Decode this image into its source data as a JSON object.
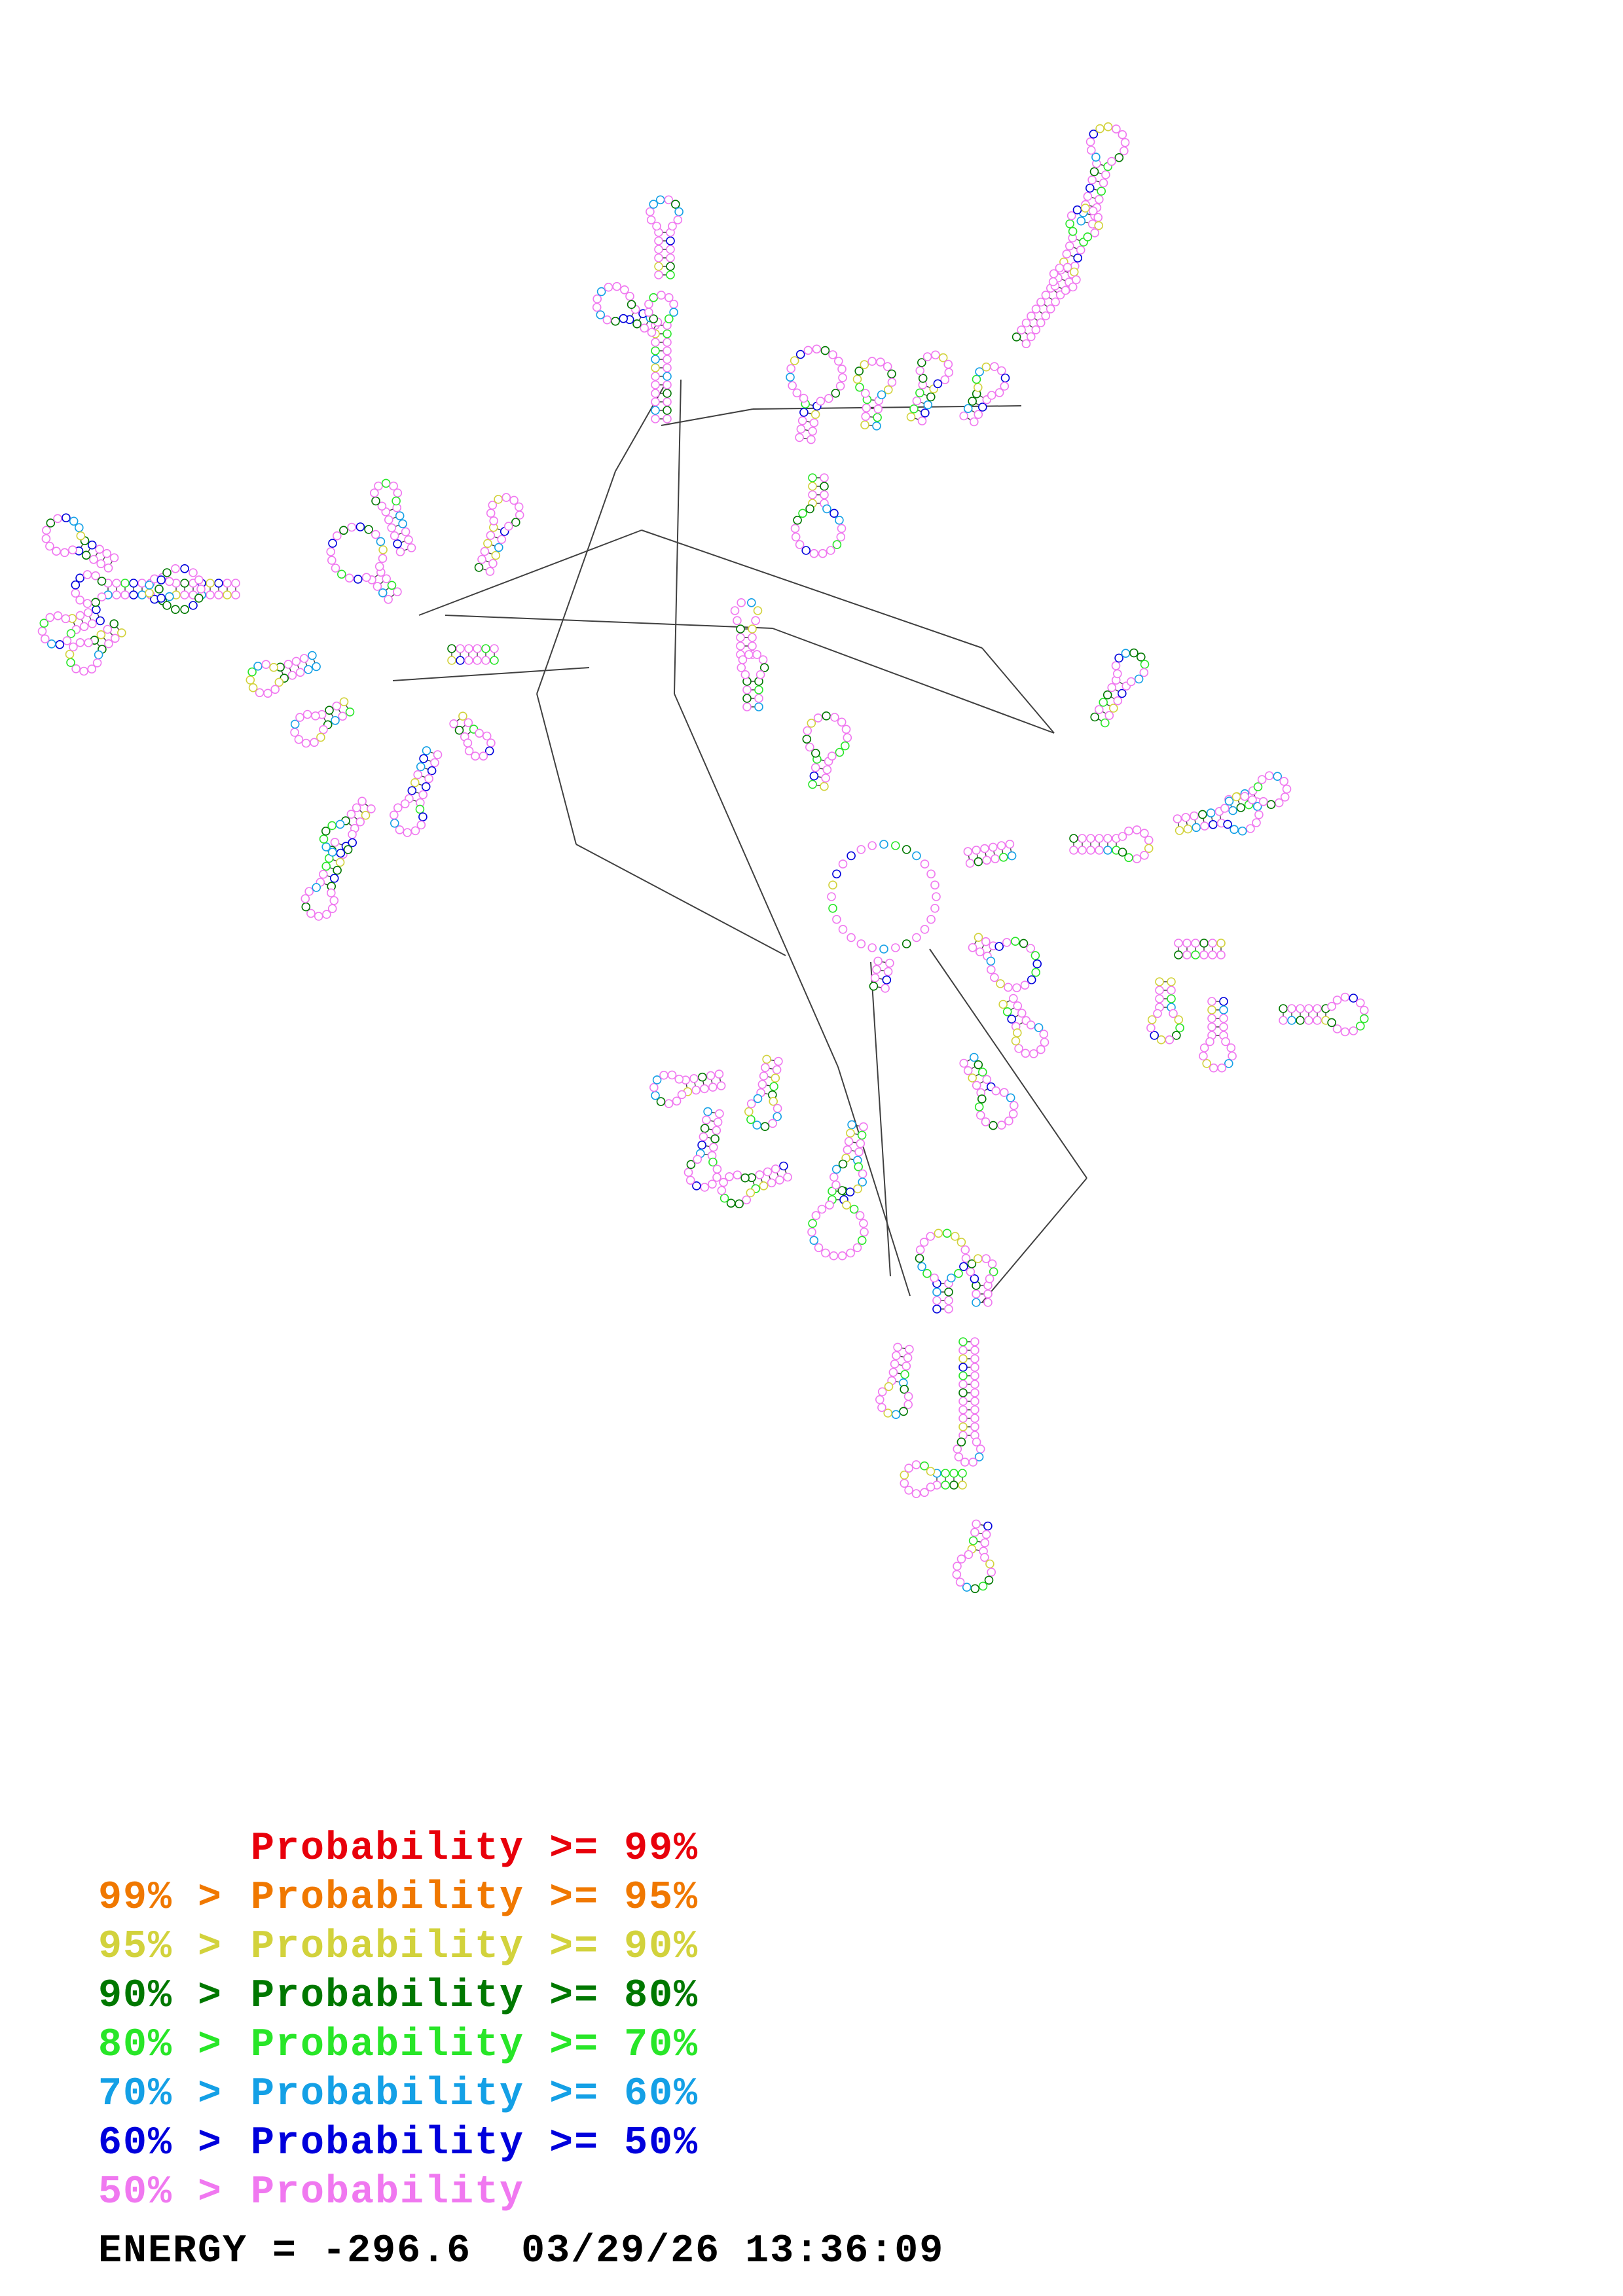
{
  "structure": {
    "energy_label": "ENERGY = ",
    "energy_value": "-296.6",
    "timestamp": "03/29/26 13:36:09",
    "nucleotide_ring_fill": "#ffffff"
  },
  "legend": [
    {
      "prefix": "",
      "label": "Probability",
      "op": ">=",
      "threshold": "99%",
      "color": "#e8000b"
    },
    {
      "prefix": "99% >",
      "label": "Probability",
      "op": ">=",
      "threshold": "95%",
      "color": "#f07800"
    },
    {
      "prefix": "95% >",
      "label": "Probability",
      "op": ">=",
      "threshold": "90%",
      "color": "#d2d23c"
    },
    {
      "prefix": "90% >",
      "label": "Probability",
      "op": ">=",
      "threshold": "80%",
      "color": "#007800"
    },
    {
      "prefix": "80% >",
      "label": "Probability",
      "op": ">=",
      "threshold": "70%",
      "color": "#28e628"
    },
    {
      "prefix": "70% >",
      "label": "Probability",
      "op": ">=",
      "threshold": "60%",
      "color": "#14a0e6"
    },
    {
      "prefix": "60% >",
      "label": "Probability",
      "op": ">=",
      "threshold": "50%",
      "color": "#0000dc"
    },
    {
      "prefix": "50% >",
      "label": "Probability",
      "op": "",
      "threshold": "",
      "color": "#f078f0"
    }
  ]
}
